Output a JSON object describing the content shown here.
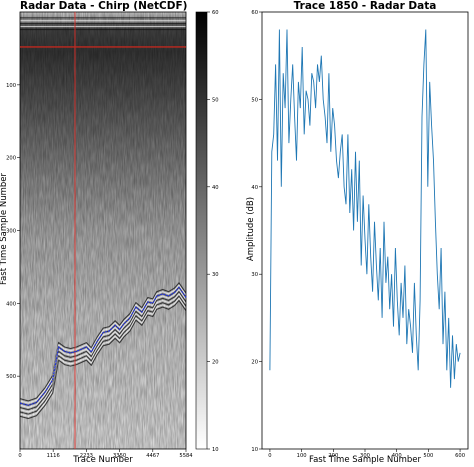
{
  "chart_data": [
    {
      "type": "heatmap",
      "title": "Radar Data - Chirp (NetCDF)",
      "xlabel": "Trace Number",
      "ylabel": "Fast Time Sample Number",
      "x_ticks": [
        "0",
        "1116",
        "2233",
        "3350",
        "4467",
        "5584"
      ],
      "y_ticks": [
        "100",
        "200",
        "300",
        "400",
        "500"
      ],
      "xlim": [
        0,
        5584
      ],
      "ylim": [
        600,
        0
      ],
      "colorbar": {
        "ticks": [
          "10",
          "20",
          "30",
          "40",
          "50",
          "60"
        ],
        "range": [
          10,
          60
        ],
        "cmap": "gray_r"
      },
      "marker_line": {
        "trace": 1850,
        "color": "#e0302a"
      },
      "surface_pick": {
        "color": "#c0281f",
        "sample": 48
      },
      "bed_pick": {
        "color": "#2233dd",
        "points": [
          [
            0,
            537
          ],
          [
            280,
            540
          ],
          [
            560,
            536
          ],
          [
            840,
            522
          ],
          [
            1100,
            505
          ],
          [
            1300,
            460
          ],
          [
            1500,
            466
          ],
          [
            1700,
            468
          ],
          [
            1900,
            466
          ],
          [
            2233,
            460
          ],
          [
            2400,
            467
          ],
          [
            2600,
            452
          ],
          [
            2800,
            440
          ],
          [
            3000,
            438
          ],
          [
            3200,
            430
          ],
          [
            3350,
            436
          ],
          [
            3500,
            428
          ],
          [
            3700,
            420
          ],
          [
            3900,
            405
          ],
          [
            4100,
            412
          ],
          [
            4300,
            398
          ],
          [
            4467,
            400
          ],
          [
            4600,
            390
          ],
          [
            4800,
            387
          ],
          [
            5000,
            390
          ],
          [
            5200,
            385
          ],
          [
            5350,
            378
          ],
          [
            5584,
            392
          ]
        ]
      }
    },
    {
      "type": "line",
      "title": "Trace 1850 - Radar Data",
      "xlabel": "Fast Time Sample Number",
      "ylabel": "Amplitude (dB)",
      "x_ticks": [
        "0",
        "100",
        "200",
        "300",
        "400",
        "500",
        "600"
      ],
      "y_ticks": [
        "10",
        "20",
        "30",
        "40",
        "50",
        "60"
      ],
      "xlim": [
        -25,
        625
      ],
      "ylim": [
        10,
        60
      ],
      "color": "#1f77b4",
      "series": [
        {
          "x": [
            0,
            6,
            12,
            18,
            24,
            30,
            36,
            42,
            48,
            54,
            60,
            66,
            72,
            78,
            84,
            90,
            96,
            102,
            108,
            114,
            120,
            126,
            132,
            138,
            144,
            150,
            156,
            162,
            168,
            174,
            180,
            186,
            192,
            198,
            204,
            210,
            216,
            222,
            228,
            234,
            240,
            246,
            252,
            258,
            264,
            270,
            276,
            282,
            288,
            294,
            300,
            306,
            312,
            318,
            324,
            330,
            336,
            342,
            348,
            354,
            360,
            366,
            372,
            378,
            384,
            390,
            396,
            402,
            408,
            414,
            420,
            426,
            432,
            438,
            444,
            450,
            456,
            462,
            468,
            474,
            480,
            486,
            492,
            498,
            504,
            510,
            516,
            522,
            528,
            534,
            540,
            546,
            552,
            558,
            564,
            570,
            576,
            582,
            588,
            594,
            600
          ],
          "y": [
            19,
            44,
            46,
            54,
            43,
            58,
            40,
            53,
            49,
            58,
            45,
            50,
            54,
            48,
            43,
            52,
            49,
            56,
            46,
            51,
            50,
            47,
            53,
            52,
            49,
            54,
            52,
            55,
            50,
            48,
            45,
            53,
            44,
            49,
            47,
            43,
            41,
            44,
            46,
            40,
            38,
            46,
            37,
            42,
            35,
            44,
            36,
            43,
            31,
            39,
            34,
            30,
            38,
            32,
            28,
            36,
            31,
            27,
            33,
            25,
            36,
            29,
            32,
            26,
            30,
            24,
            33,
            27,
            23,
            29,
            25,
            31,
            22,
            26,
            24,
            21,
            29,
            23,
            19,
            27,
            48,
            54,
            58,
            40,
            52,
            47,
            43,
            36,
            30,
            26,
            33,
            22,
            28,
            19,
            25,
            17,
            23,
            18,
            22,
            20,
            21
          ]
        }
      ]
    }
  ]
}
